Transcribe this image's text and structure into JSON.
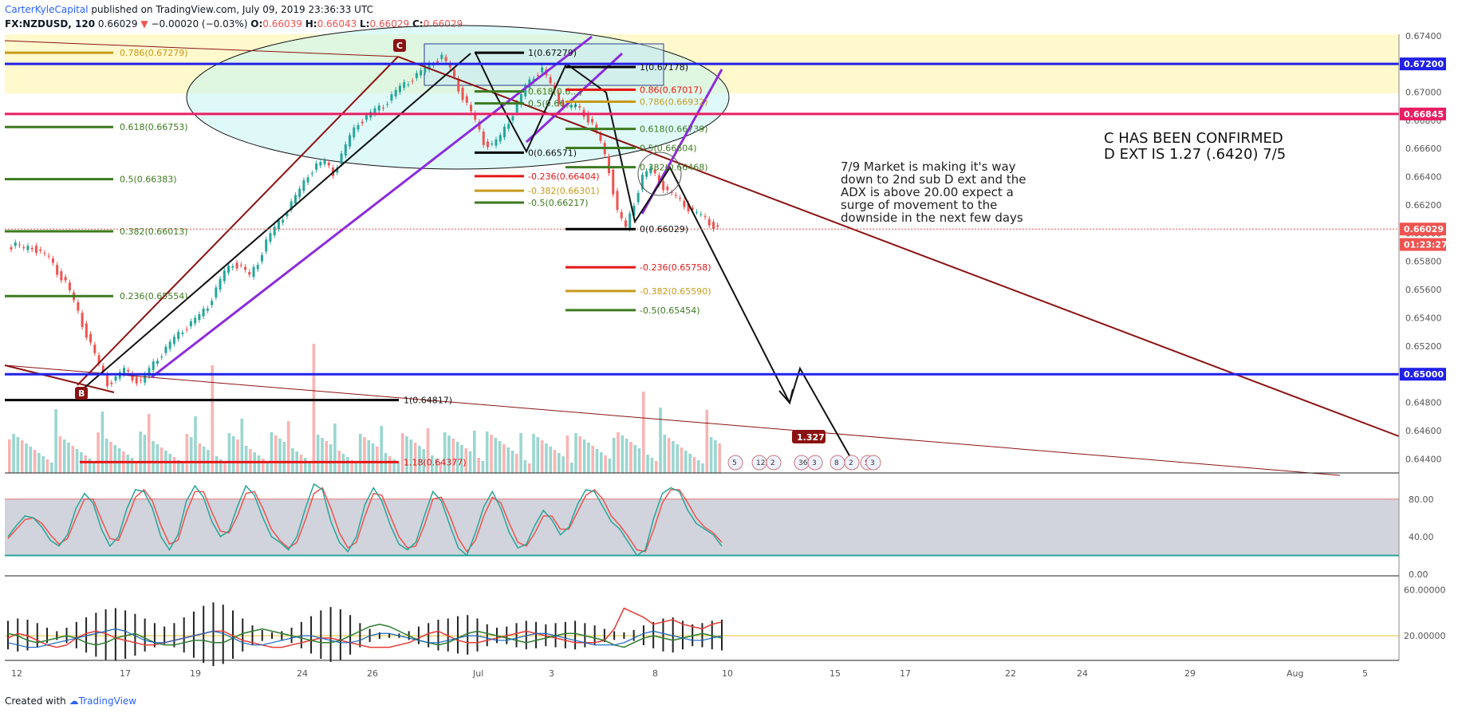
{
  "header": {
    "author": "CarterKyleCapital",
    "published": "published on TradingView.com, July 09, 2019 23:36:33 UTC",
    "symbol": "FX:NZDUSD, 120",
    "last": "0.66029",
    "change_arrow": "▼",
    "change": "−0.00020 (−0.03%)",
    "o_label": "O:",
    "o": "0.66039",
    "h_label": "H:",
    "h": "0.66043",
    "l_label": "L:",
    "l": "0.66029",
    "c_label": "C:",
    "c": "0.66029"
  },
  "footer": {
    "created": "Created with",
    "brand": "TradingView"
  },
  "colors": {
    "up": "#26a69a",
    "down": "#ef5350",
    "blue_level": "#2121e8",
    "pink_level": "#e91e63",
    "trend": "#8b1212",
    "purple": "#8c2bdc"
  },
  "annotations": {
    "note": [
      "7/9 Market is making it's way",
      "down to 2nd sub D ext and the",
      "ADX is above 20.00 expect a",
      "surge of movement to the",
      "downside in the next few days"
    ],
    "headline": [
      "C HAS BEEN CONFIRMED",
      "D EXT IS 1.27 (.6420) 7/5"
    ],
    "point_c": "C",
    "point_b": "B",
    "ext_tag": "1.327",
    "event_icons": [
      "5",
      "12",
      "2",
      "36",
      "3",
      "8",
      "2",
      "5",
      "3"
    ]
  },
  "chart_data": {
    "type": "candlestick",
    "symbol": "FX:NZDUSD",
    "ylim": [
      0.643,
      0.6741
    ],
    "price_axis_ticks": [
      "0.67400",
      "0.67200",
      "0.67000",
      "0.66800",
      "0.66600",
      "0.66400",
      "0.66200",
      "0.66000",
      "0.65800",
      "0.65600",
      "0.65400",
      "0.65200",
      "0.65000",
      "0.64800",
      "0.64600",
      "0.64400"
    ],
    "price_tick_values": [
      0.674,
      0.672,
      0.67,
      0.668,
      0.666,
      0.664,
      0.662,
      0.66,
      0.658,
      0.656,
      0.654,
      0.652,
      0.65,
      0.648,
      0.646,
      0.644
    ],
    "time_axis_ticks": [
      "12",
      "17",
      "19",
      "24",
      "26",
      "Jul",
      "3",
      "8",
      "10",
      "15",
      "17",
      "22",
      "24",
      "29",
      "Aug",
      "5"
    ],
    "price_badges": [
      {
        "label": "0.67200",
        "value": 0.672,
        "color": "#2121e8"
      },
      {
        "label": "0.66845",
        "value": 0.66845,
        "color": "#e91e63"
      },
      {
        "label": "0.66029",
        "value": 0.66029,
        "color": "#ef5350"
      },
      {
        "label": "01:23:27",
        "value": 0.6592,
        "color": "#ef5350"
      },
      {
        "label": "0.65000",
        "value": 0.65,
        "color": "#2121e8"
      }
    ],
    "horizontal_levels": [
      {
        "value": 0.672,
        "color": "#2121e8"
      },
      {
        "value": 0.66845,
        "color": "#e91e63"
      },
      {
        "value": 0.65,
        "color": "#2121e8"
      }
    ],
    "fib_left": [
      {
        "label": "0.786(0.67279)",
        "value": 0.67279,
        "color": "#c79a1a"
      },
      {
        "label": "0.618(0.66753)",
        "value": 0.66753,
        "color": "#3d7a1f"
      },
      {
        "label": "0.5(0.66383)",
        "value": 0.66383,
        "color": "#3d7a1f"
      },
      {
        "label": "0.382(0.66013)",
        "value": 0.66013,
        "color": "#3d7a1f"
      },
      {
        "label": "0.236(0.65554)",
        "value": 0.65554,
        "color": "#3d7a1f"
      },
      {
        "label": "1(0.64817)",
        "value": 0.64817,
        "color": "#000000"
      },
      {
        "label": "1.18(0.64377)",
        "value": 0.64377,
        "color": "#e51616"
      }
    ],
    "fib_mid": [
      {
        "label": "1(0.67279)",
        "value": 0.67279,
        "color": "#000000"
      },
      {
        "label": "0.618(0.6...)",
        "value": 0.67005,
        "color": "#3d7a1f"
      },
      {
        "label": "0.5(0.66...)",
        "value": 0.6692,
        "color": "#3d7a1f"
      },
      {
        "label": "0(0.66571)",
        "value": 0.66571,
        "color": "#000000"
      },
      {
        "label": "-0.236(0.66404)",
        "value": 0.66404,
        "color": "#e51616"
      },
      {
        "label": "-0.382(0.66301)",
        "value": 0.66301,
        "color": "#c79a1a"
      },
      {
        "label": "-0.5(0.66217)",
        "value": 0.66217,
        "color": "#3d7a1f"
      }
    ],
    "fib_right": [
      {
        "label": "1(0.67178)",
        "value": 0.67178,
        "color": "#000000"
      },
      {
        "label": "0.86(0.67017)",
        "value": 0.67017,
        "color": "#e51616"
      },
      {
        "label": "0.786(0.66932)",
        "value": 0.66932,
        "color": "#c79a1a"
      },
      {
        "label": "0.618(0.66739)",
        "value": 0.66739,
        "color": "#3d7a1f"
      },
      {
        "label": "0.5(0.66604)",
        "value": 0.66604,
        "color": "#3d7a1f"
      },
      {
        "label": "0.382(0.66468)",
        "value": 0.66468,
        "color": "#3d7a1f"
      },
      {
        "label": "0(0.66029)",
        "value": 0.66029,
        "color": "#000000"
      },
      {
        "label": "-0.236(0.65758)",
        "value": 0.65758,
        "color": "#e51616"
      },
      {
        "label": "-0.382(0.65590)",
        "value": 0.6559,
        "color": "#c79a1a"
      },
      {
        "label": "-0.5(0.65454)",
        "value": 0.65454,
        "color": "#3d7a1f"
      }
    ],
    "price_path": [
      0.659,
      0.6592,
      0.6588,
      0.6591,
      0.6586,
      0.6582,
      0.6573,
      0.6565,
      0.6551,
      0.6536,
      0.6521,
      0.6506,
      0.6494,
      0.6497,
      0.6503,
      0.6498,
      0.6494,
      0.6503,
      0.6512,
      0.6518,
      0.6525,
      0.6532,
      0.6536,
      0.6541,
      0.6549,
      0.656,
      0.6572,
      0.6579,
      0.6576,
      0.6569,
      0.658,
      0.6594,
      0.6603,
      0.6612,
      0.6621,
      0.663,
      0.6642,
      0.6648,
      0.665,
      0.6643,
      0.6655,
      0.6668,
      0.6679,
      0.6682,
      0.6687,
      0.6691,
      0.6697,
      0.6703,
      0.6708,
      0.6712,
      0.6716,
      0.6722,
      0.6725,
      0.6716,
      0.6703,
      0.6691,
      0.6679,
      0.6665,
      0.6662,
      0.6668,
      0.668,
      0.6691,
      0.6703,
      0.6712,
      0.6716,
      0.6705,
      0.6694,
      0.6689,
      0.669,
      0.6685,
      0.6677,
      0.6664,
      0.6645,
      0.6615,
      0.6603,
      0.6622,
      0.664,
      0.6645,
      0.6637,
      0.6629,
      0.6625,
      0.6621,
      0.6615,
      0.6612,
      0.6608,
      0.6603
    ],
    "price_path_x_range_time_ticks": [
      "12",
      "10"
    ],
    "stoch_levels": [
      80,
      20
    ],
    "stoch_axis_ticks": [
      "80.00",
      "40.00",
      "0.00"
    ],
    "stoch_k": [
      40,
      52,
      62,
      60,
      50,
      36,
      30,
      42,
      70,
      86,
      76,
      48,
      30,
      40,
      70,
      90,
      88,
      70,
      40,
      26,
      42,
      78,
      94,
      82,
      56,
      40,
      46,
      72,
      94,
      84,
      60,
      40,
      34,
      26,
      40,
      70,
      96,
      90,
      56,
      34,
      24,
      40,
      74,
      92,
      78,
      52,
      32,
      26,
      34,
      62,
      88,
      78,
      52,
      28,
      20,
      44,
      72,
      88,
      70,
      44,
      28,
      32,
      52,
      68,
      58,
      42,
      50,
      74,
      90,
      88,
      72,
      56,
      48,
      34,
      20,
      26,
      60,
      86,
      92,
      88,
      68,
      54,
      48,
      42,
      30
    ],
    "stoch_d": [
      38,
      48,
      58,
      60,
      54,
      42,
      32,
      38,
      60,
      80,
      80,
      58,
      38,
      36,
      58,
      82,
      90,
      78,
      52,
      32,
      36,
      66,
      88,
      88,
      66,
      46,
      44,
      62,
      86,
      88,
      70,
      48,
      36,
      28,
      34,
      58,
      86,
      92,
      70,
      44,
      28,
      34,
      62,
      86,
      84,
      62,
      40,
      28,
      30,
      52,
      80,
      82,
      62,
      38,
      24,
      36,
      62,
      82,
      76,
      54,
      34,
      30,
      44,
      62,
      62,
      48,
      48,
      66,
      84,
      90,
      80,
      62,
      52,
      40,
      26,
      24,
      48,
      76,
      90,
      90,
      76,
      60,
      50,
      44,
      34
    ],
    "adx_axis_ticks": [
      "60.00000",
      "20.00000"
    ],
    "adx_level": 20,
    "adx_hist": [
      26,
      30,
      28,
      22,
      14,
      8,
      14,
      24,
      32,
      40,
      46,
      48,
      44,
      38,
      30,
      22,
      16,
      22,
      32,
      42,
      52,
      58,
      54,
      44,
      30,
      18,
      10,
      6,
      8,
      14,
      24,
      34,
      44,
      50,
      46,
      36,
      22,
      12,
      6,
      4,
      4,
      8,
      16,
      22,
      28,
      30,
      34,
      36,
      30,
      20,
      14,
      16,
      22,
      26,
      24,
      20,
      22,
      24,
      26,
      22,
      18,
      12,
      8,
      6,
      10,
      18,
      24,
      30,
      32,
      26,
      20,
      22,
      26,
      28
    ],
    "adx_plus": [
      18,
      22,
      20,
      16,
      12,
      10,
      12,
      18,
      22,
      24,
      22,
      18,
      16,
      14,
      12,
      12,
      14,
      16,
      18,
      20,
      22,
      24,
      24,
      20,
      16,
      14,
      12,
      10,
      10,
      12,
      14,
      16,
      18,
      18,
      16,
      14,
      12,
      10,
      10,
      10,
      12,
      14,
      18,
      22,
      24,
      20,
      16,
      14,
      14,
      16,
      18,
      20,
      22,
      24,
      22,
      20,
      18,
      16,
      14,
      14,
      14,
      16,
      26,
      44,
      40,
      36,
      30,
      32,
      34,
      30,
      28,
      26,
      30,
      32
    ],
    "adx_minus": [
      22,
      20,
      16,
      14,
      16,
      18,
      20,
      18,
      14,
      12,
      14,
      18,
      20,
      22,
      18,
      14,
      12,
      12,
      14,
      16,
      16,
      14,
      14,
      18,
      22,
      24,
      26,
      24,
      22,
      20,
      18,
      16,
      14,
      14,
      16,
      20,
      24,
      28,
      30,
      28,
      24,
      20,
      16,
      14,
      12,
      14,
      18,
      22,
      24,
      22,
      20,
      18,
      16,
      14,
      16,
      18,
      20,
      22,
      22,
      20,
      18,
      16,
      12,
      10,
      14,
      18,
      20,
      18,
      16,
      18,
      20,
      22,
      20,
      18
    ],
    "adx_adx": [
      14,
      12,
      10,
      10,
      12,
      14,
      16,
      18,
      20,
      22,
      24,
      26,
      24,
      20,
      16,
      14,
      14,
      16,
      18,
      20,
      22,
      24,
      22,
      18,
      14,
      12,
      12,
      14,
      16,
      18,
      20,
      20,
      18,
      16,
      14,
      14,
      16,
      20,
      22,
      22,
      20,
      18,
      16,
      14,
      14,
      16,
      18,
      20,
      20,
      18,
      16,
      16,
      18,
      20,
      22,
      22,
      20,
      18,
      16,
      14,
      12,
      12,
      12,
      14,
      18,
      22,
      24,
      22,
      20,
      18,
      16,
      16,
      18,
      20
    ]
  }
}
